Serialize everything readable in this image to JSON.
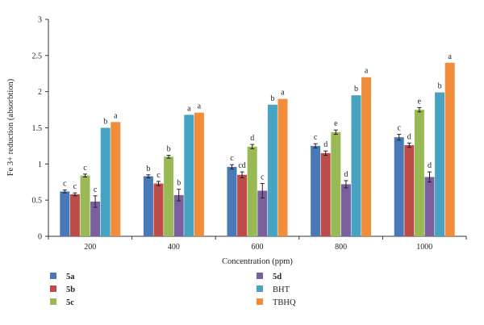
{
  "chart_data": {
    "type": "bar",
    "title": "",
    "xlabel": "Concentration (ppm)",
    "ylabel": "Fe 3+ reduction (absorbtion)",
    "ylim": [
      0,
      3
    ],
    "yticks": [
      0,
      0.5,
      1,
      1.5,
      2,
      2.5,
      3
    ],
    "ytick_labels": [
      "0",
      "0.5",
      "1",
      "1.5",
      "2",
      "2.5",
      "3"
    ],
    "categories": [
      "200",
      "400",
      "600",
      "800",
      "1000"
    ],
    "grid": false,
    "legend_position": "bottom",
    "series": [
      {
        "name": "5a",
        "bold": true,
        "color": "#4a79b8",
        "values": [
          0.62,
          0.83,
          0.96,
          1.25,
          1.37
        ],
        "errors": [
          0.02,
          0.02,
          0.03,
          0.03,
          0.04
        ],
        "labels": [
          "c",
          "b",
          "c",
          "c",
          "c"
        ]
      },
      {
        "name": "5b",
        "bold": true,
        "color": "#bd4b48",
        "values": [
          0.58,
          0.73,
          0.85,
          1.15,
          1.26
        ],
        "errors": [
          0.02,
          0.03,
          0.04,
          0.03,
          0.03
        ],
        "labels": [
          "c",
          "c",
          "cd",
          "d",
          "d"
        ]
      },
      {
        "name": "5c",
        "bold": true,
        "color": "#98b954",
        "values": [
          0.84,
          1.1,
          1.24,
          1.44,
          1.75
        ],
        "errors": [
          0.02,
          0.02,
          0.03,
          0.03,
          0.03
        ],
        "labels": [
          "c",
          "b",
          "d",
          "e",
          "e"
        ]
      },
      {
        "name": "5d",
        "bold": true,
        "color": "#7b5f9e",
        "values": [
          0.48,
          0.57,
          0.63,
          0.72,
          0.82
        ],
        "errors": [
          0.08,
          0.08,
          0.1,
          0.05,
          0.07
        ],
        "labels": [
          "c",
          "b",
          "c",
          "d",
          "d"
        ]
      },
      {
        "name": "BHT",
        "bold": false,
        "color": "#46a3c2",
        "values": [
          1.5,
          1.68,
          1.82,
          1.95,
          1.99
        ],
        "errors": [
          0,
          0,
          0,
          0,
          0
        ],
        "labels": [
          "b",
          "a",
          "b",
          "b",
          "b"
        ]
      },
      {
        "name": "TBHQ",
        "bold": false,
        "color": "#f08c3a",
        "values": [
          1.58,
          1.71,
          1.9,
          2.2,
          2.4
        ],
        "errors": [
          0,
          0,
          0,
          0,
          0
        ],
        "labels": [
          "a",
          "a",
          "a",
          "a",
          "a"
        ]
      }
    ]
  }
}
